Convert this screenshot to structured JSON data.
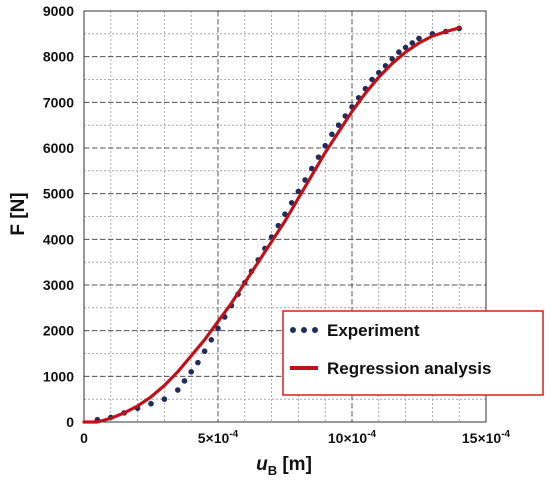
{
  "chart_data": {
    "type": "line",
    "ylabel": "F [N]",
    "xlabel": {
      "main": "u",
      "sub": "B",
      "unit": " [m]"
    },
    "xlim": [
      0,
      0.0015
    ],
    "ylim": [
      0,
      9000
    ],
    "grid": true,
    "legend": "bottom-right",
    "x_ticks": [
      {
        "value": 0,
        "label": "0"
      },
      {
        "value": 0.0005,
        "label": "5×10",
        "exp": "-4"
      },
      {
        "value": 0.001,
        "label": "10×10",
        "exp": "-4"
      },
      {
        "value": 0.0015,
        "label": "15×10",
        "exp": "-4"
      }
    ],
    "y_ticks": [
      0,
      1000,
      2000,
      3000,
      4000,
      5000,
      6000,
      7000,
      8000,
      9000
    ],
    "series": [
      {
        "name": "Experiment",
        "style": "dotted",
        "color": "#1f2d5c",
        "points": [
          [
            5e-05,
            50
          ],
          [
            0.0001,
            100
          ],
          [
            0.00015,
            200
          ],
          [
            0.0002,
            300
          ],
          [
            0.00025,
            400
          ],
          [
            0.0003,
            500
          ],
          [
            0.00035,
            700
          ],
          [
            0.000375,
            900
          ],
          [
            0.0004,
            1100
          ],
          [
            0.000425,
            1300
          ],
          [
            0.00045,
            1550
          ],
          [
            0.000475,
            1800
          ],
          [
            0.0005,
            2050
          ],
          [
            0.000525,
            2300
          ],
          [
            0.00055,
            2550
          ],
          [
            0.000575,
            2800
          ],
          [
            0.0006,
            3050
          ],
          [
            0.000625,
            3300
          ],
          [
            0.00065,
            3550
          ],
          [
            0.000675,
            3800
          ],
          [
            0.0007,
            4050
          ],
          [
            0.000725,
            4300
          ],
          [
            0.00075,
            4550
          ],
          [
            0.000775,
            4800
          ],
          [
            0.0008,
            5050
          ],
          [
            0.000825,
            5300
          ],
          [
            0.00085,
            5550
          ],
          [
            0.000875,
            5800
          ],
          [
            0.0009,
            6050
          ],
          [
            0.000925,
            6300
          ],
          [
            0.00095,
            6500
          ],
          [
            0.000975,
            6700
          ],
          [
            0.001,
            6900
          ],
          [
            0.001025,
            7100
          ],
          [
            0.00105,
            7300
          ],
          [
            0.001075,
            7500
          ],
          [
            0.0011,
            7650
          ],
          [
            0.001125,
            7800
          ],
          [
            0.00115,
            7950
          ],
          [
            0.001175,
            8100
          ],
          [
            0.0012,
            8200
          ],
          [
            0.001225,
            8300
          ],
          [
            0.00125,
            8400
          ],
          [
            0.0013,
            8500
          ],
          [
            0.00135,
            8550
          ],
          [
            0.0014,
            8620
          ]
        ]
      },
      {
        "name": "Regression analysis",
        "style": "solid",
        "color": "#c0101a",
        "points": [
          [
            0,
            0
          ],
          [
            5e-05,
            0
          ],
          [
            0.0001,
            80
          ],
          [
            0.00015,
            200
          ],
          [
            0.0002,
            350
          ],
          [
            0.00025,
            550
          ],
          [
            0.0003,
            800
          ],
          [
            0.00035,
            1100
          ],
          [
            0.0004,
            1450
          ],
          [
            0.00045,
            1800
          ],
          [
            0.0005,
            2200
          ],
          [
            0.00055,
            2600
          ],
          [
            0.0006,
            3050
          ],
          [
            0.00065,
            3500
          ],
          [
            0.0007,
            3950
          ],
          [
            0.00075,
            4400
          ],
          [
            0.0008,
            4900
          ],
          [
            0.00085,
            5400
          ],
          [
            0.0009,
            5900
          ],
          [
            0.00095,
            6350
          ],
          [
            0.001,
            6800
          ],
          [
            0.00105,
            7200
          ],
          [
            0.0011,
            7550
          ],
          [
            0.00115,
            7850
          ],
          [
            0.0012,
            8100
          ],
          [
            0.00125,
            8300
          ],
          [
            0.0013,
            8450
          ],
          [
            0.00135,
            8550
          ],
          [
            0.0014,
            8630
          ]
        ]
      }
    ]
  }
}
